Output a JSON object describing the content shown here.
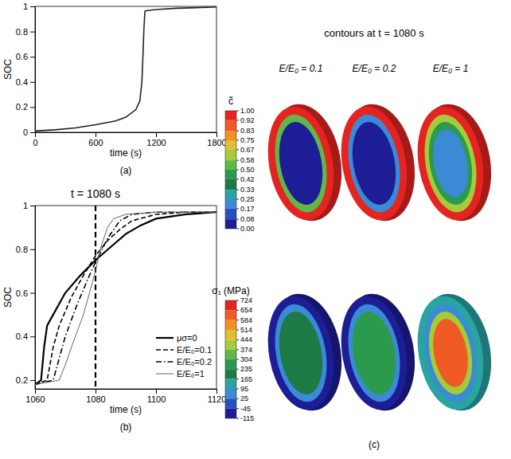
{
  "chart_data": [
    {
      "type": "line",
      "caption": "(a)",
      "x_label": "time (s)",
      "y_label": "SOC",
      "x": [
        0,
        200,
        400,
        600,
        800,
        900,
        1000,
        1040,
        1060,
        1070,
        1080,
        1090,
        1100,
        1200,
        1400,
        1600,
        1800
      ],
      "values": [
        0.01,
        0.02,
        0.035,
        0.06,
        0.09,
        0.12,
        0.18,
        0.25,
        0.4,
        0.6,
        0.82,
        0.96,
        0.965,
        0.975,
        0.985,
        0.99,
        0.995
      ],
      "color": "#222222",
      "xlim": [
        0,
        1800
      ],
      "xticks": [
        0,
        600,
        1200,
        1800
      ],
      "ylim": [
        0,
        1
      ],
      "yticks": [
        0,
        0.2,
        0.4,
        0.6,
        0.8,
        1
      ]
    },
    {
      "type": "line",
      "title": "t = 1080 s",
      "caption": "(b)",
      "x_label": "time (s)",
      "y_label": "SOC",
      "vline": 1080,
      "series": [
        {
          "name": "μσ=0",
          "color": "#000000",
          "line_style": "solid",
          "x": [
            1060,
            1062,
            1063,
            1064,
            1066,
            1070,
            1075,
            1080,
            1085,
            1090,
            1095,
            1100,
            1110,
            1120
          ],
          "values": [
            0.18,
            0.2,
            0.35,
            0.45,
            0.5,
            0.6,
            0.68,
            0.75,
            0.81,
            0.87,
            0.91,
            0.94,
            0.96,
            0.97
          ]
        },
        {
          "name": "E/E₀=0.1",
          "color": "#000000",
          "line_style": "dashed",
          "x": [
            1060,
            1064,
            1066,
            1068,
            1072,
            1076,
            1080,
            1084,
            1088,
            1092,
            1100,
            1110,
            1120
          ],
          "values": [
            0.18,
            0.2,
            0.35,
            0.45,
            0.58,
            0.68,
            0.77,
            0.84,
            0.89,
            0.93,
            0.96,
            0.97,
            0.97
          ]
        },
        {
          "name": "E/E₀=0.2",
          "color": "#000000",
          "line_style": "dashdot",
          "x": [
            1060,
            1066,
            1068,
            1070,
            1074,
            1078,
            1080,
            1084,
            1088,
            1092,
            1100,
            1120
          ],
          "values": [
            0.18,
            0.2,
            0.3,
            0.4,
            0.55,
            0.68,
            0.74,
            0.85,
            0.93,
            0.96,
            0.97,
            0.97
          ]
        },
        {
          "name": "E/E₀=1",
          "color": "#666666",
          "line_style": "solid",
          "x": [
            1060,
            1068,
            1070,
            1072,
            1076,
            1080,
            1082,
            1084,
            1086,
            1090,
            1100,
            1120
          ],
          "values": [
            0.18,
            0.2,
            0.27,
            0.35,
            0.5,
            0.7,
            0.82,
            0.9,
            0.94,
            0.96,
            0.97,
            0.97
          ]
        }
      ],
      "legend": "lower right",
      "xlim": [
        1060,
        1120
      ],
      "xticks": [
        1060,
        1080,
        1100,
        1120
      ],
      "ylim": [
        0.16,
        1
      ],
      "yticks": [
        0.2,
        0.4,
        0.6,
        0.8,
        1
      ]
    },
    {
      "type": "contour",
      "title": "contours at t = 1080 s",
      "caption": "(c)",
      "columns": [
        "E/E₀ = 0.1",
        "E/E₀ = 0.2",
        "E/E₀ = 1"
      ],
      "rows": [
        {
          "colorbar_title": "c̃",
          "colorbar_ticks": [
            {
              "value": 1,
              "label": "1.00"
            },
            0.92,
            0.83,
            0.75,
            0.67,
            0.58,
            {
              "value": 0.5,
              "label": "0.50"
            },
            0.42,
            0.33,
            0.25,
            0.17,
            0.08,
            {
              "value": 0,
              "label": "0.00"
            }
          ],
          "colors": [
            "#e52421",
            "#f05a25",
            "#f39022",
            "#e0c030",
            "#a4cc3a",
            "#5fb848",
            "#2c9a4c",
            "#1e7a45",
            "#2aa3a3",
            "#3a8ad6",
            "#2450c0",
            "#1d1d96"
          ],
          "levels": [
            [
              1,
              0.55,
              0.03
            ],
            [
              1,
              0.2,
              0.03
            ],
            [
              1,
              0.62,
              0.45,
              0.2
            ]
          ]
        },
        {
          "colorbar_title": "σ₁ (MPa)",
          "colorbar_ticks": [
            724,
            654,
            584,
            514,
            444,
            374,
            304,
            235,
            165,
            95,
            25,
            -45,
            -115
          ],
          "colors": [
            "#e52421",
            "#f05a25",
            "#f39022",
            "#e0c030",
            "#a4cc3a",
            "#5fb848",
            "#2c9a4c",
            "#1e7a45",
            "#2aa3a3",
            "#3a8ad6",
            "#2450c0",
            "#1d1d96"
          ],
          "levels": [
            [
              -80,
              60,
              200
            ],
            [
              -80,
              60,
              270
            ],
            [
              140,
              60,
              400,
              620
            ]
          ]
        }
      ]
    }
  ]
}
